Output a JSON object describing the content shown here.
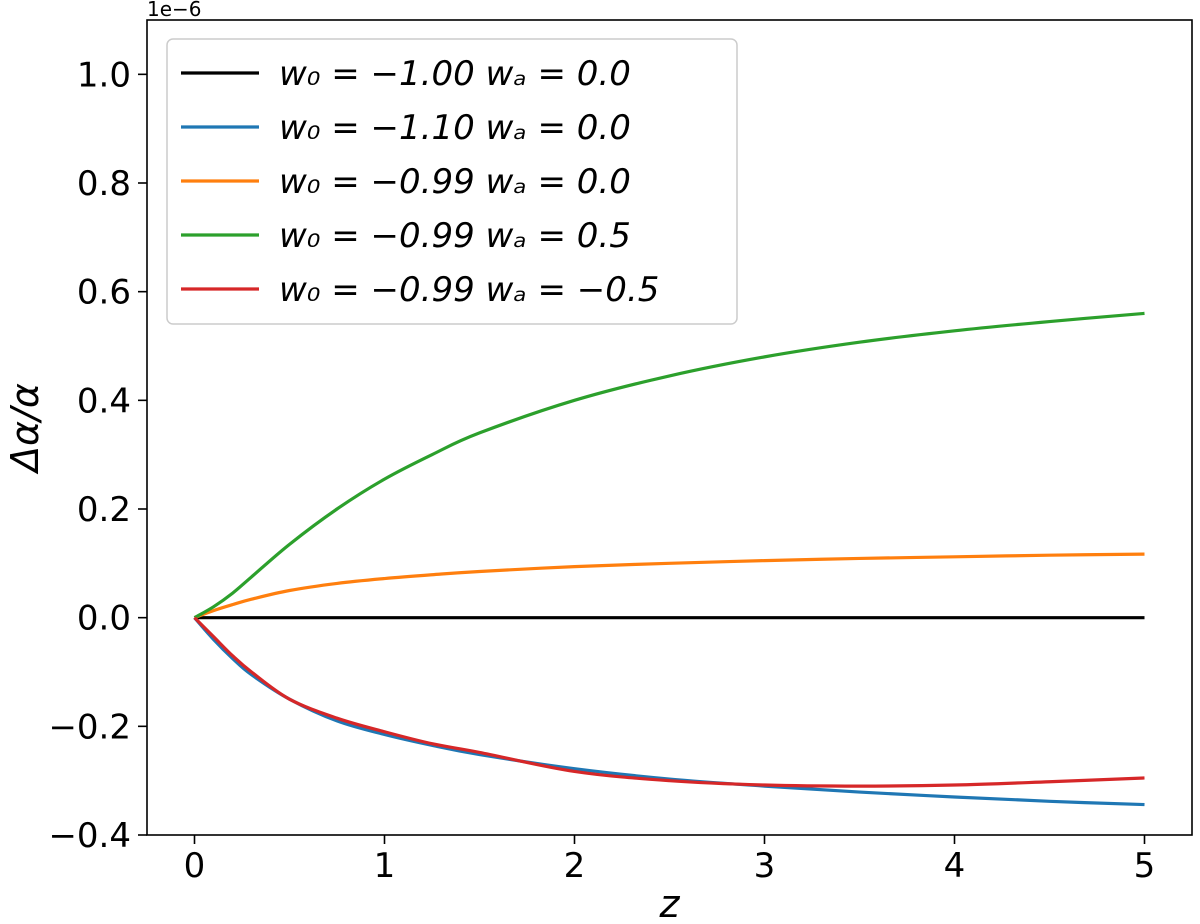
{
  "chart_data": {
    "type": "line",
    "title": "",
    "xlabel": "z",
    "ylabel": "Δα/α",
    "y_offset_label": "1e−6",
    "xlim": [
      -0.25,
      5.25
    ],
    "ylim": [
      -0.4,
      1.1
    ],
    "xticks": [
      0,
      1,
      2,
      3,
      4,
      5
    ],
    "xtick_labels": [
      "0",
      "1",
      "2",
      "3",
      "4",
      "5"
    ],
    "yticks": [
      -0.4,
      -0.2,
      0.0,
      0.2,
      0.4,
      0.6,
      0.8,
      1.0
    ],
    "ytick_labels": [
      "−0.4",
      "−0.2",
      "0.0",
      "0.2",
      "0.4",
      "0.6",
      "0.8",
      "1.0"
    ],
    "grid": false,
    "legend_position": "top-left",
    "x": [
      0,
      0.1,
      0.2,
      0.3,
      0.5,
      0.75,
      1.0,
      1.25,
      1.5,
      2.0,
      2.5,
      3.0,
      3.5,
      4.0,
      4.5,
      5.0
    ],
    "series": [
      {
        "name": "w₀ = −1.00  wₐ = 0.0",
        "color": "#000000",
        "values": [
          0,
          0,
          0,
          0,
          0,
          0,
          0,
          0,
          0,
          0,
          0,
          0,
          0,
          0,
          0,
          0
        ]
      },
      {
        "name": "w₀ = −1.10  wₐ = 0.0",
        "color": "#1f77b4",
        "values": [
          0,
          -0.04,
          -0.075,
          -0.105,
          -0.15,
          -0.19,
          -0.215,
          -0.235,
          -0.252,
          -0.278,
          -0.297,
          -0.31,
          -0.321,
          -0.33,
          -0.338,
          -0.344
        ]
      },
      {
        "name": "w₀ = −0.99  wₐ = 0.0",
        "color": "#ff7f0e",
        "values": [
          0,
          0.013,
          0.024,
          0.034,
          0.05,
          0.063,
          0.072,
          0.079,
          0.085,
          0.094,
          0.1,
          0.105,
          0.109,
          0.112,
          0.115,
          0.117
        ]
      },
      {
        "name": "w₀ = −0.99  wₐ = 0.5",
        "color": "#2ca02c",
        "values": [
          0,
          0.02,
          0.045,
          0.075,
          0.135,
          0.2,
          0.255,
          0.3,
          0.34,
          0.4,
          0.445,
          0.48,
          0.507,
          0.528,
          0.545,
          0.56
        ]
      },
      {
        "name": "w₀ = −0.99  wₐ = −0.5",
        "color": "#d62728",
        "values": [
          0,
          -0.035,
          -0.07,
          -0.1,
          -0.15,
          -0.185,
          -0.21,
          -0.232,
          -0.248,
          -0.283,
          -0.3,
          -0.308,
          -0.31,
          -0.308,
          -0.302,
          -0.295
        ]
      }
    ]
  }
}
